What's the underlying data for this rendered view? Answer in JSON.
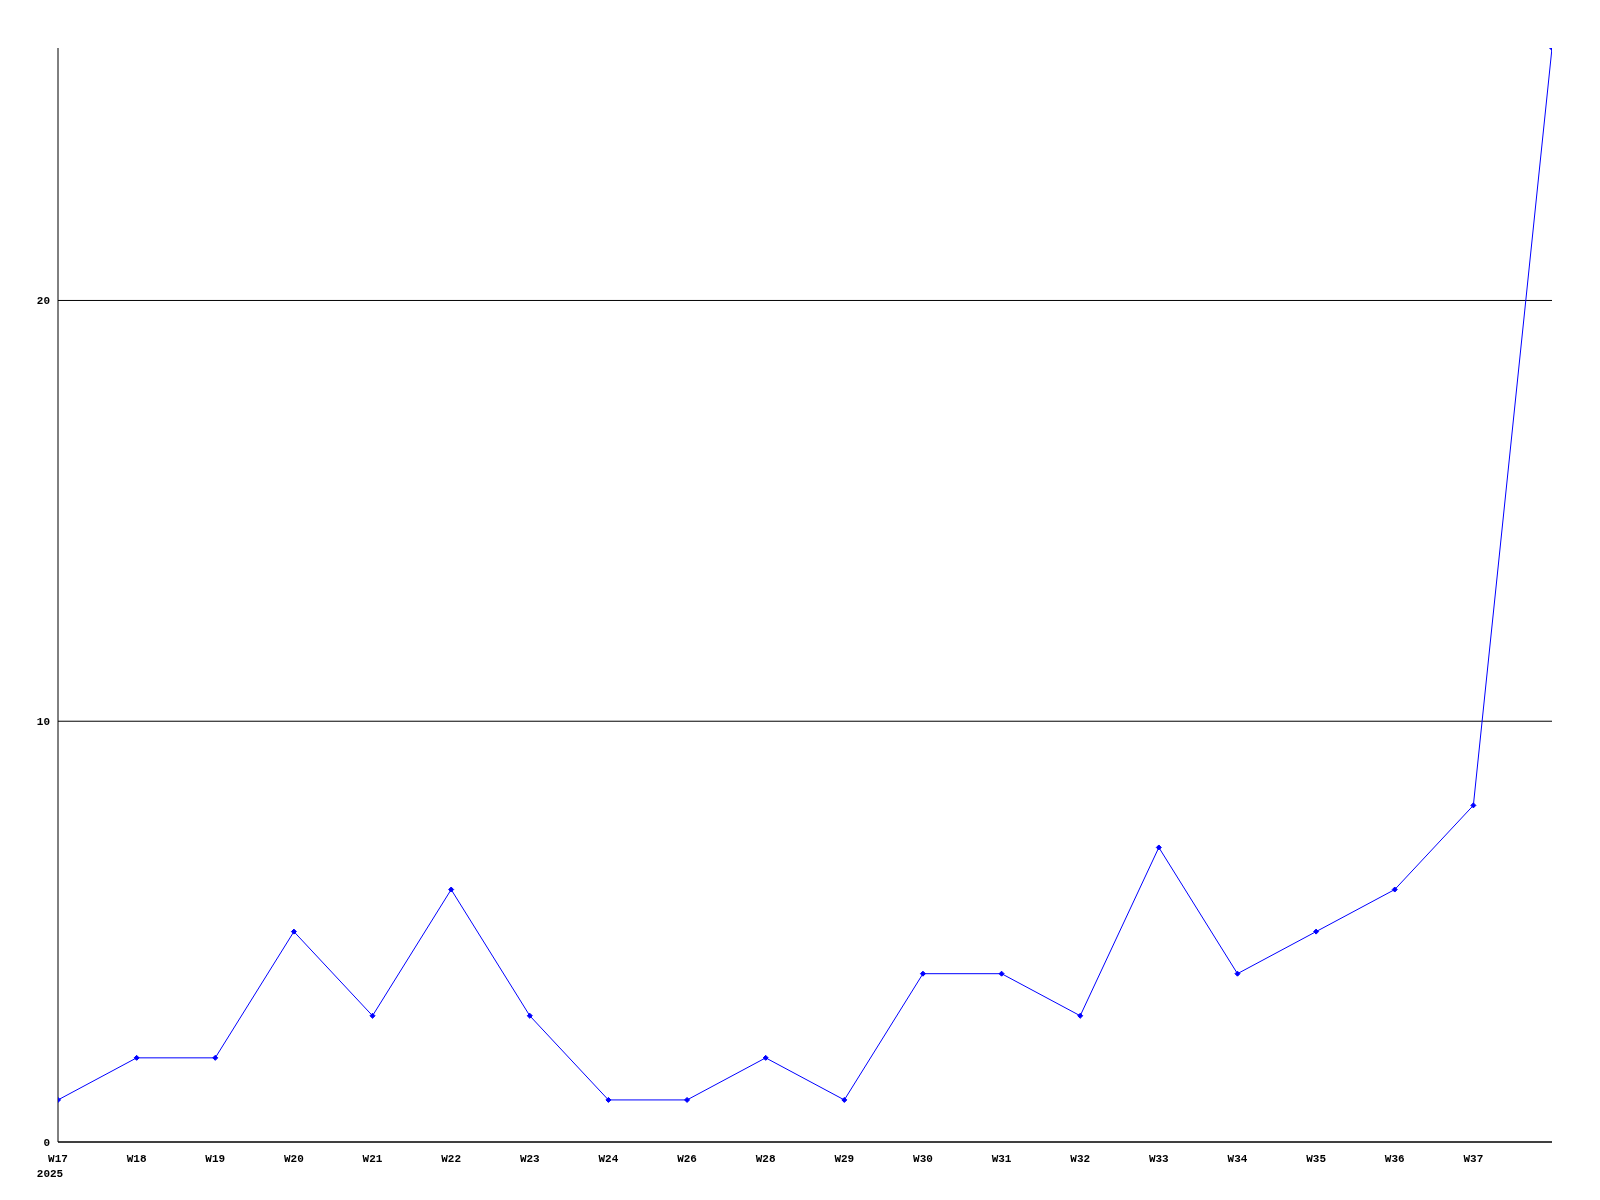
{
  "chart_data": {
    "type": "line",
    "categories": [
      "W17\n2025",
      "W18",
      "W19",
      "W20",
      "W21",
      "W22",
      "W23",
      "W24",
      "W26",
      "W28",
      "W29",
      "W30",
      "W31",
      "W32",
      "W33",
      "W34",
      "W35",
      "W36",
      "W37",
      null
    ],
    "series": [
      {
        "color": "#0000ff",
        "values": [
          1,
          2,
          2,
          5,
          3,
          6,
          3,
          1,
          1,
          2,
          1,
          4,
          4,
          3,
          7,
          4,
          5,
          6,
          8,
          26
        ]
      }
    ],
    "ylim": [
      0,
      26
    ],
    "yticks": [
      0,
      10,
      20
    ],
    "grid": "y",
    "marker": "diamond",
    "line_style": "solid"
  }
}
